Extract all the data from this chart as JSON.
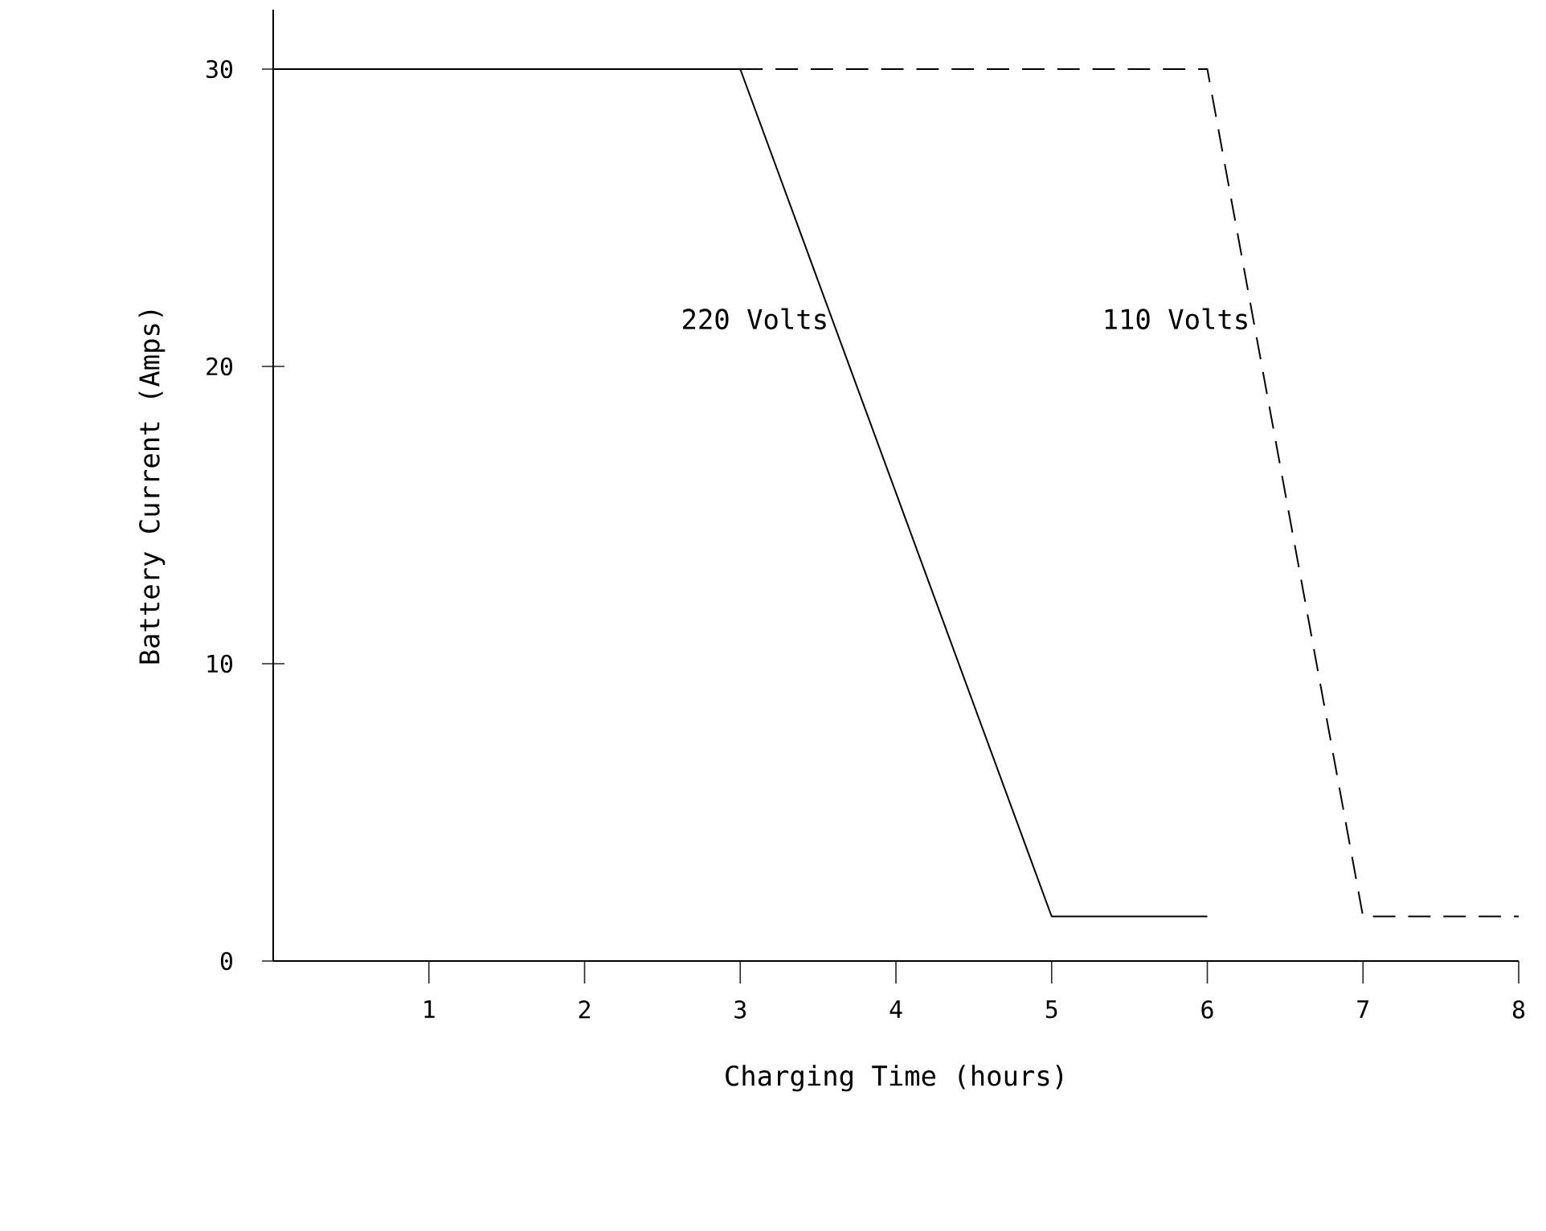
{
  "chart_data": {
    "type": "line",
    "xlabel": "Charging Time (hours)",
    "ylabel": "Battery Current (Amps)",
    "xlim": [
      0,
      8
    ],
    "ylim": [
      0,
      32
    ],
    "xticks": [
      1,
      2,
      3,
      4,
      5,
      6,
      7,
      8
    ],
    "yticks": [
      0,
      10,
      20,
      30
    ],
    "grid": false,
    "series": [
      {
        "name": "220 Volts",
        "color": "#000000",
        "line_style": "solid",
        "x": [
          0,
          3,
          5,
          6
        ],
        "values": [
          30,
          30,
          1.5,
          1.5
        ]
      },
      {
        "name": "110 Volts",
        "color": "#000000",
        "line_style": "dashed",
        "x": [
          3,
          6,
          7,
          8
        ],
        "values": [
          30,
          30,
          1.5,
          1.5
        ]
      }
    ]
  }
}
